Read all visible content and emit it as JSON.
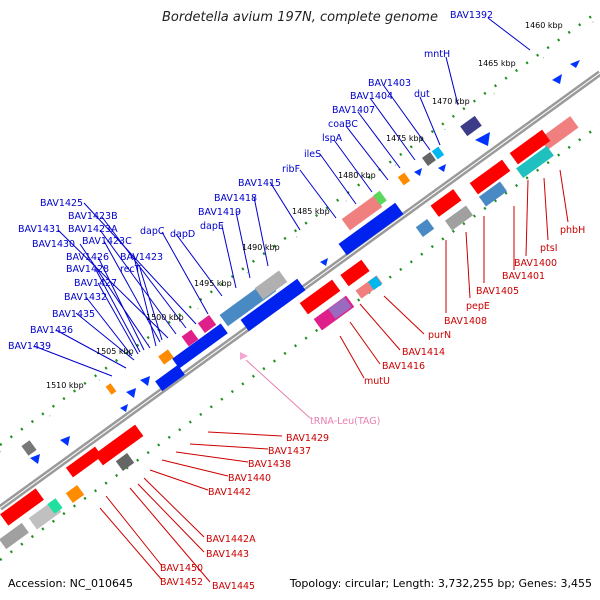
{
  "title": "Bordetella avium 197N, complete genome",
  "footer": {
    "accession": "Accession: NC_010645",
    "summary": "Topology: circular; Length: 3,732,255 bp; Genes: 3,455"
  },
  "colors": {
    "background": "#ffffff",
    "backbone": "#8a8a8a",
    "forward_label": "#0000cc",
    "reverse_label": "#cc0000",
    "trna_label": "#e87fb0",
    "tick": "#1f8f1f"
  },
  "kbp_labels": [
    "1460 kbp",
    "1465 kbp",
    "1470 kbp",
    "1475 kbp",
    "1480 kbp",
    "1485 kbp",
    "1490 kbp",
    "1495 kbp",
    "1500 kbp",
    "1505 kbp",
    "1510 kbp"
  ],
  "forward_genes": [
    "BAV1392",
    "mntH",
    "dut",
    "BAV1403",
    "BAV1404",
    "BAV1407",
    "coaBC",
    "lspA",
    "ileS",
    "ribF",
    "BAV1415",
    "BAV1418",
    "BAV1419",
    "dapE",
    "dapD",
    "dapC",
    "BAV1425",
    "BAV1423B",
    "BAV1423A",
    "BAV1431",
    "BAV1423C",
    "BAV1430",
    "BAV1423",
    "BAV1426",
    "recT",
    "BAV1428",
    "BAV1427",
    "BAV1432",
    "BAV1435",
    "BAV1436",
    "BAV1439"
  ],
  "reverse_genes": [
    "phbH",
    "ptsI",
    "BAV1400",
    "BAV1401",
    "BAV1405",
    "pepE",
    "BAV1408",
    "purN",
    "BAV1414",
    "BAV1416",
    "mutU",
    "BAV1429",
    "BAV1437",
    "BAV1438",
    "BAV1440",
    "BAV1442",
    "BAV1442A",
    "BAV1443",
    "BAV1450",
    "BAV1452",
    "BAV1445"
  ],
  "trna": "tRNA-Leu(TAG)"
}
